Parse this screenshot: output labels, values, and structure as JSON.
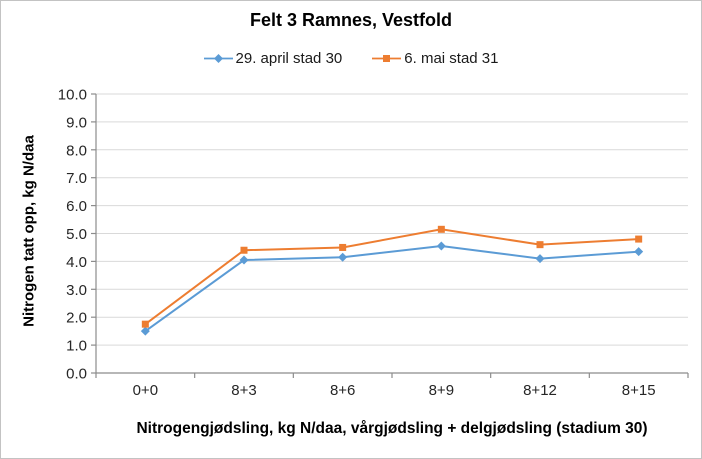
{
  "chart": {
    "background": "#ffffff",
    "border_color": "#c3c3c3"
  },
  "chart_data": {
    "type": "line",
    "title": "Felt 3 Ramnes, Vestfold",
    "categories": [
      "0+0",
      "8+3",
      "8+6",
      "8+9",
      "8+12",
      "8+15"
    ],
    "series": [
      {
        "name": "29. april stad 30",
        "color": "#5B9BD5",
        "marker": "diamond",
        "values": [
          1.5,
          4.05,
          4.15,
          4.55,
          4.1,
          4.35
        ]
      },
      {
        "name": "6. mai stad 31",
        "color": "#ED7D31",
        "marker": "square",
        "values": [
          1.75,
          4.4,
          4.5,
          5.15,
          4.6,
          4.8
        ]
      }
    ],
    "xlabel": "Nitrogengjødsling, kg N/daa, vårgjødsling + delgjødsling (stadium 30)",
    "ylabel": "Nitrogen tatt opp, kg N/daa",
    "ylim": [
      0,
      10
    ],
    "y_tick_step": 1.0,
    "y_tick_labels": [
      "0.0",
      "1.0",
      "2.0",
      "3.0",
      "4.0",
      "5.0",
      "6.0",
      "7.0",
      "8.0",
      "9.0",
      "10.0"
    ],
    "grid": "horizontal",
    "legend_position": "top",
    "colors": {
      "gridline": "#d9d9d9",
      "axis": "#8c8c8c",
      "tick_text": "#262626"
    }
  }
}
